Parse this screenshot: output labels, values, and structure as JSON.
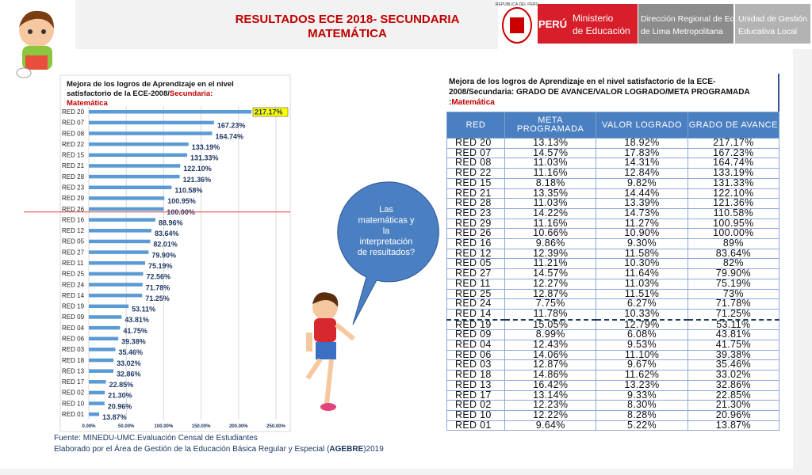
{
  "slide_title": [
    "RESULTADOS ECE 2018- SECUNDARIA",
    "MATEMÁTICA"
  ],
  "logos": {
    "republica": "REPÚBLICA DEL PERÚ",
    "peru": "PERÚ",
    "ministerio": [
      "Ministerio",
      "de Educación"
    ],
    "direccion": [
      "Dirección Regional de Educación",
      "de Lima Metropolitana"
    ],
    "ugel": [
      "Unidad de Gestión",
      "Educativa Local"
    ]
  },
  "chart_data": {
    "type": "hbar",
    "title": [
      "Mejora de los logros de Aprendizaje en el nivel",
      "satisfactorio de la ECE-2008/"
    ],
    "title_highlight": [
      "Secundaria:",
      "Matemática"
    ],
    "color": "#5b9bd5",
    "highlight_color": "#ffff00",
    "categories": [
      "RED 20",
      "RED 07",
      "RED 08",
      "RED 22",
      "RED 15",
      "RED 21",
      "RED 28",
      "RED 23",
      "RED 29",
      "RED 26",
      "RED 16",
      "RED 12",
      "RED 05",
      "RED 27",
      "RED 11",
      "RED 25",
      "RED 24",
      "RED 14",
      "RED 19",
      "RED 09",
      "RED 04",
      "RED 06",
      "RED 03",
      "RED 18",
      "RED 13",
      "RED 17",
      "RED 02",
      "RED 10",
      "RED 01"
    ],
    "values": [
      217.17,
      167.23,
      164.74,
      133.19,
      131.33,
      122.1,
      121.36,
      110.58,
      100.95,
      100.0,
      88.96,
      83.64,
      82.01,
      79.9,
      75.19,
      72.56,
      71.78,
      71.25,
      53.11,
      43.81,
      41.75,
      39.38,
      35.46,
      33.02,
      32.86,
      22.85,
      21.3,
      20.96,
      13.87
    ],
    "value_labels": [
      "217.17%",
      "167.23%",
      "164.74%",
      "133.19%",
      "131.33%",
      "122.10%",
      "121.36%",
      "110.58%",
      "100.95%",
      "100.00%",
      "88.96%",
      "83.64%",
      "82.01%",
      "79.90%",
      "75.19%",
      "72.56%",
      "71.78%",
      "71.25%",
      "53.11%",
      "43.81%",
      "41.75%",
      "39.38%",
      "35.46%",
      "33.02%",
      "32.86%",
      "22.85%",
      "21.30%",
      "20.96%",
      "13.87%"
    ],
    "xlim": [
      0,
      250
    ],
    "xticks": [
      {
        "value": 0,
        "label": "0.00%"
      },
      {
        "value": 50,
        "label": "50.00%"
      },
      {
        "value": 100,
        "label": "100.00%"
      },
      {
        "value": 150,
        "label": "150.00%"
      },
      {
        "value": 200,
        "label": "200.00%"
      },
      {
        "value": 250,
        "label": "250.00%"
      }
    ],
    "grid": true
  },
  "callout": "Las matemáticas y la interpretación de resultados?",
  "table": {
    "title": "Mejora de los logros de Aprendizaje en el nivel satisfactorio de la ECE-2008/Secundaria: GRADO DE AVANCE/VALOR LOGRADO/META PROGRAMADA :",
    "title_highlight": "Matemática",
    "header": [
      "RED",
      "META PROGRAMADA",
      "VALOR LOGRADO",
      "GRADO DE AVANCE"
    ],
    "rows": [
      [
        "RED 20",
        "13.13%",
        "18.92%",
        "217.17%"
      ],
      [
        "RED 07",
        "14.57%",
        "17.83%",
        "167.23%"
      ],
      [
        "RED 08",
        "11.03%",
        "14.31%",
        "164.74%"
      ],
      [
        "RED 22",
        "11.16%",
        "12.84%",
        "133.19%"
      ],
      [
        "RED 15",
        "8.18%",
        "9.82%",
        "131.33%"
      ],
      [
        "RED 21",
        "13.35%",
        "14.44%",
        "122.10%"
      ],
      [
        "RED 28",
        "11.03%",
        "13.39%",
        "121.36%"
      ],
      [
        "RED 23",
        "14.22%",
        "14.73%",
        "110.58%"
      ],
      [
        "RED 29",
        "11.16%",
        "11.27%",
        "100.95%"
      ],
      [
        "RED 26",
        "10.66%",
        "10.90%",
        "100.00%"
      ],
      [
        "RED 16",
        "9.86%",
        "9.30%",
        "89%"
      ],
      [
        "RED 12",
        "12.39%",
        "11.58%",
        "83.64%"
      ],
      [
        "RED 05",
        "11.21%",
        "10.30%",
        "82%"
      ],
      [
        "RED 27",
        "14.57%",
        "11.64%",
        "79.90%"
      ],
      [
        "RED 11",
        "12.27%",
        "11.03%",
        "75.19%"
      ],
      [
        "RED 25",
        "12.87%",
        "11.51%",
        "73%"
      ],
      [
        "RED 24",
        "7.75%",
        "6.27%",
        "71.78%"
      ],
      [
        "RED 14",
        "11.78%",
        "10.33%",
        "71.25%"
      ],
      [
        "RED 19",
        "15.05%",
        "12.79%",
        "53.11%"
      ],
      [
        "RED 09",
        "8.99%",
        "6.08%",
        "43.81%"
      ],
      [
        "RED 04",
        "12.43%",
        "9.53%",
        "41.75%"
      ],
      [
        "RED 06",
        "14.06%",
        "11.10%",
        "39.38%"
      ],
      [
        "RED 03",
        "12.87%",
        "9.67%",
        "35.46%"
      ],
      [
        "RED 18",
        "14.86%",
        "11.62%",
        "33.02%"
      ],
      [
        "RED 13",
        "16.42%",
        "13.23%",
        "32.86%"
      ],
      [
        "RED 17",
        "13.14%",
        "9.33%",
        "22.85%"
      ],
      [
        "RED 02",
        "12.23%",
        "8.30%",
        "21.30%"
      ],
      [
        "RED 10",
        "12.22%",
        "8.28%",
        "20.96%"
      ],
      [
        "RED 01",
        "9.64%",
        "5.22%",
        "13.87%"
      ]
    ]
  },
  "footer": {
    "source": "Fuente:  MINEDU-UMC.Evaluación Censal de Estudiantes",
    "credit": [
      "Elaborado por el Área de Gestión de la Educación Básica Regular y Especial (",
      "AGEBRE",
      ")2019"
    ]
  }
}
